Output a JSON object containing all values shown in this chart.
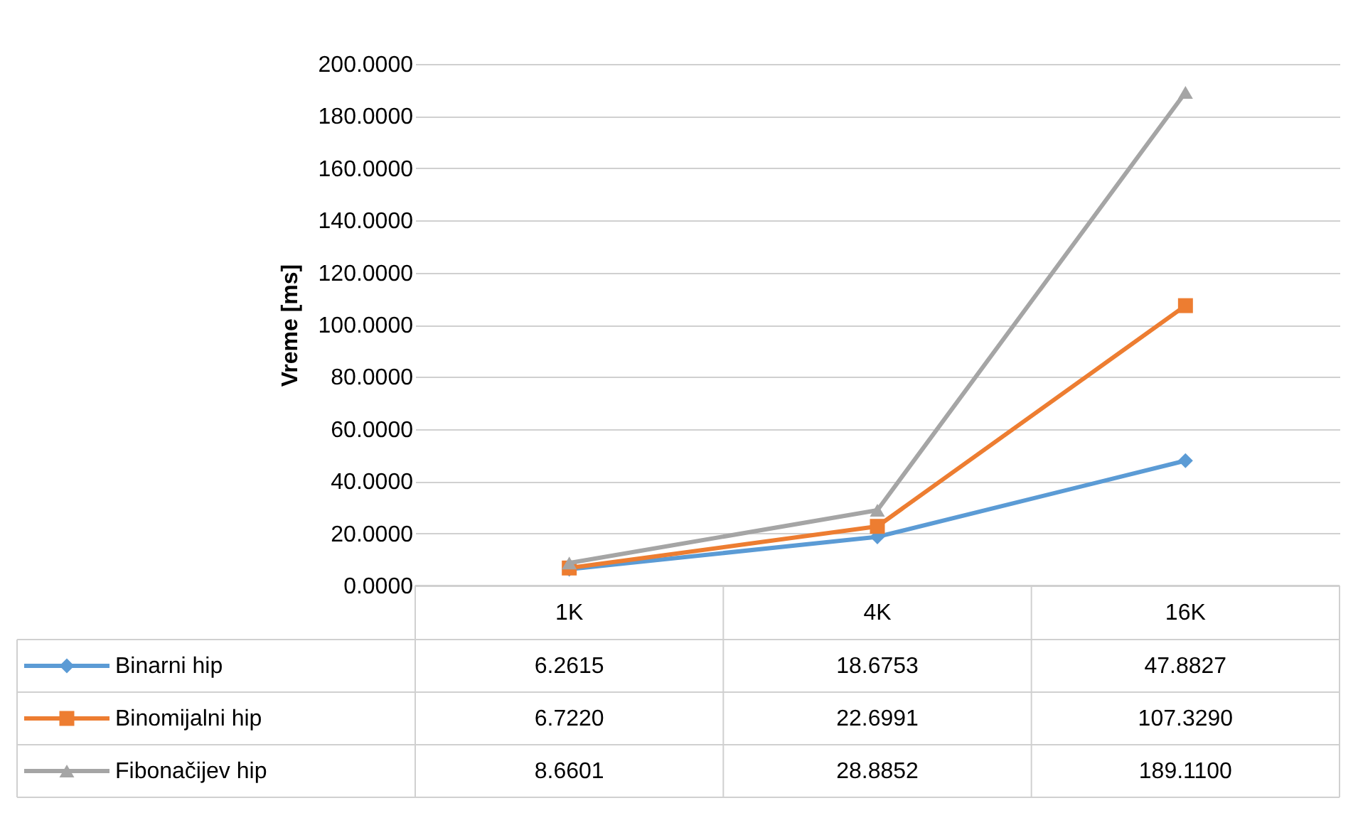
{
  "chart_data": {
    "type": "line",
    "ylabel": "Vreme [ms]",
    "categories": [
      "1K",
      "4K",
      "16K"
    ],
    "series": [
      {
        "name": "Binarni hip",
        "color": "#5b9bd5",
        "marker": "diamond",
        "values": [
          6.2615,
          18.6753,
          47.8827
        ],
        "value_labels": [
          "6.2615",
          "18.6753",
          "47.8827"
        ]
      },
      {
        "name": "Binomijalni hip",
        "color": "#ed7d31",
        "marker": "square",
        "values": [
          6.722,
          22.6991,
          107.329
        ],
        "value_labels": [
          "6.7220",
          "22.6991",
          "107.3290"
        ]
      },
      {
        "name": "Fibonačijev hip",
        "color": "#a5a5a5",
        "marker": "triangle",
        "values": [
          8.6601,
          28.8852,
          189.11
        ],
        "value_labels": [
          "8.6601",
          "28.8852",
          "189.1100"
        ]
      }
    ],
    "ylim": [
      0,
      200
    ],
    "yticks": [
      {
        "value": 0,
        "label": "0.0000"
      },
      {
        "value": 20,
        "label": "20.0000"
      },
      {
        "value": 40,
        "label": "40.0000"
      },
      {
        "value": 60,
        "label": "60.0000"
      },
      {
        "value": 80,
        "label": "80.0000"
      },
      {
        "value": 100,
        "label": "100.0000"
      },
      {
        "value": 120,
        "label": "120.0000"
      },
      {
        "value": 140,
        "label": "140.0000"
      },
      {
        "value": 160,
        "label": "160.0000"
      },
      {
        "value": 180,
        "label": "180.0000"
      },
      {
        "value": 200,
        "label": "200.0000"
      }
    ],
    "grid": "y",
    "legend": "bottom"
  }
}
